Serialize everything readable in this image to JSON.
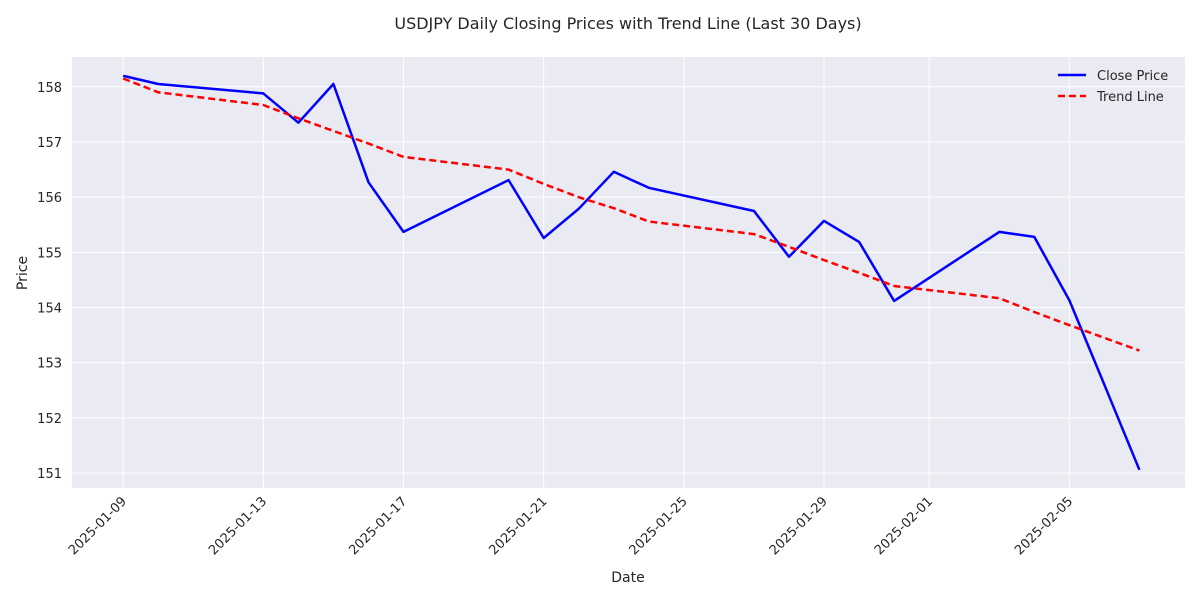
{
  "chart_data": {
    "type": "line",
    "title": "USDJPY Daily Closing Prices with Trend Line (Last 30 Days)",
    "xlabel": "Date",
    "ylabel": "Price",
    "x": [
      "2025-01-09",
      "2025-01-10",
      "2025-01-13",
      "2025-01-14",
      "2025-01-15",
      "2025-01-16",
      "2025-01-17",
      "2025-01-20",
      "2025-01-21",
      "2025-01-22",
      "2025-01-23",
      "2025-01-24",
      "2025-01-27",
      "2025-01-28",
      "2025-01-29",
      "2025-01-30",
      "2025-01-31",
      "2025-02-03",
      "2025-02-04",
      "2025-02-05",
      "2025-02-06",
      "2025-02-07"
    ],
    "series": [
      {
        "name": "Close Price",
        "color": "#0000ff",
        "style": "solid",
        "values": [
          158.2,
          158.05,
          157.88,
          157.35,
          158.05,
          156.27,
          155.37,
          156.31,
          155.26,
          155.79,
          156.46,
          156.17,
          155.75,
          154.92,
          155.57,
          155.19,
          154.12,
          155.37,
          155.28,
          154.13,
          152.6,
          151.06
        ]
      },
      {
        "name": "Trend Line",
        "color": "#ff0000",
        "style": "dashed",
        "values": [
          158.15,
          157.9,
          157.67,
          157.43,
          157.2,
          156.97,
          156.73,
          156.5,
          156.24,
          156.0,
          155.8,
          155.56,
          155.33,
          155.1,
          154.86,
          154.63,
          154.39,
          154.17,
          153.92,
          153.68,
          153.45,
          153.22
        ]
      }
    ],
    "xticks": [
      "2025-01-09",
      "2025-01-13",
      "2025-01-17",
      "2025-01-21",
      "2025-01-25",
      "2025-01-29",
      "2025-02-01",
      "2025-02-05"
    ],
    "yticks": [
      151,
      152,
      153,
      154,
      155,
      156,
      157,
      158
    ],
    "xlim": [
      "2025-01-07",
      "2025-02-08"
    ],
    "ylim": [
      150.73,
      158.54
    ],
    "grid": true,
    "legend_position": "top-right"
  }
}
